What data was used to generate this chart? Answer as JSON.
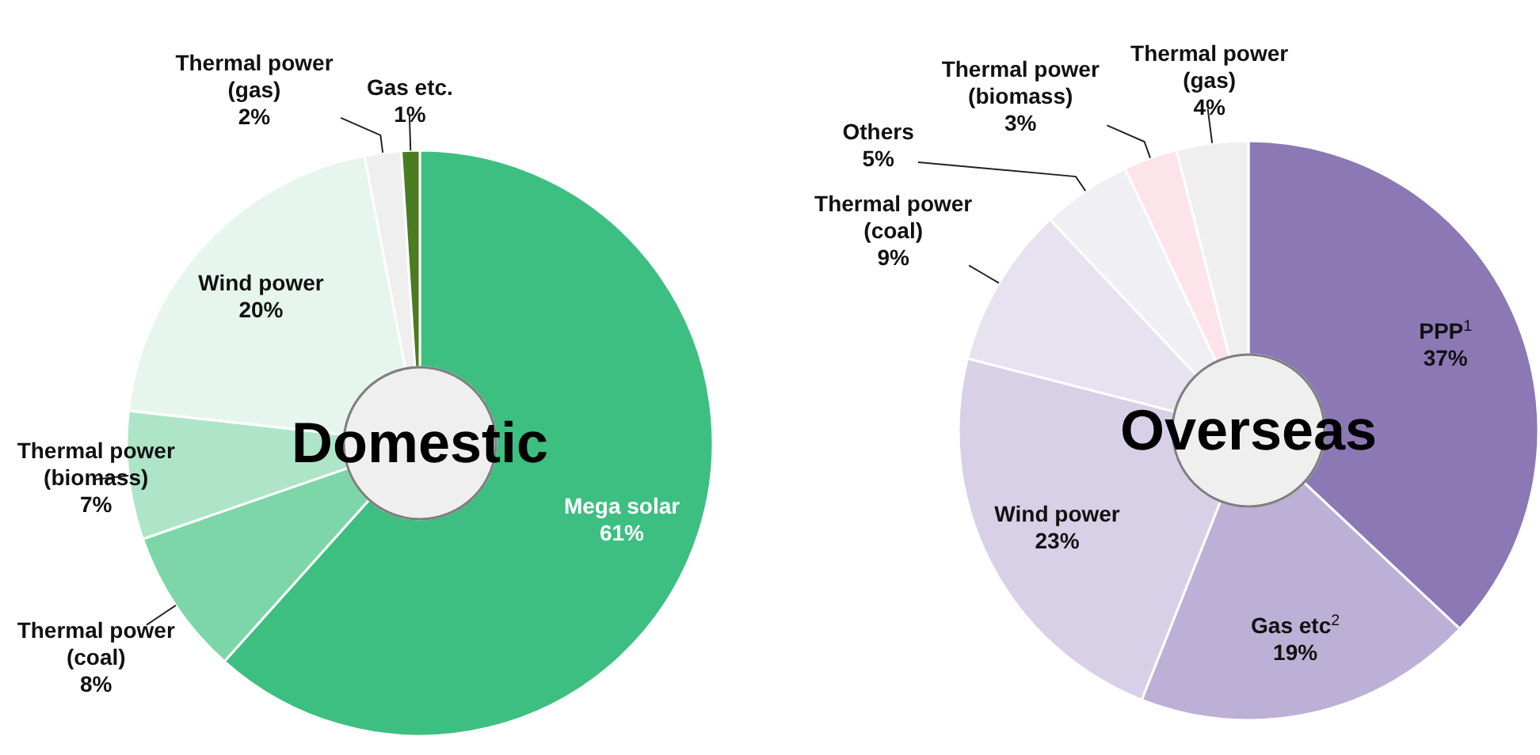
{
  "chart_data": [
    {
      "type": "donut",
      "title": "Domestic",
      "categories": [
        "Mega solar",
        "Thermal power (coal)",
        "Thermal power (biomass)",
        "Wind power",
        "Thermal power (gas)",
        "Gas etc."
      ],
      "values": [
        61,
        8,
        7,
        20,
        2,
        1
      ],
      "value_labels": [
        "61%",
        "8%",
        "7%",
        "20%",
        "2%",
        "1%"
      ],
      "colors": [
        "#3dbf82",
        "#7dd6a8",
        "#aee5c9",
        "#e6f6ee",
        "#efefef",
        "#4a7c22"
      ]
    },
    {
      "type": "donut",
      "title": "Overseas",
      "categories": [
        "PPP$^{1}$",
        "Gas etc$^{2}$",
        "Wind power",
        "Thermal power (coal)",
        "Others",
        "Thermal power (biomass)",
        "Thermal power (gas)"
      ],
      "values": [
        37,
        19,
        23,
        9,
        5,
        3,
        4
      ],
      "value_labels": [
        "37%",
        "19%",
        "23%",
        "9%",
        "5%",
        "3%",
        "4%"
      ],
      "colors": [
        "#8b78b5",
        "#bcb0d6",
        "#d8d0e6",
        "#e6e2ef",
        "#f0eff4",
        "#fde4ea",
        "#efefef"
      ]
    }
  ]
}
